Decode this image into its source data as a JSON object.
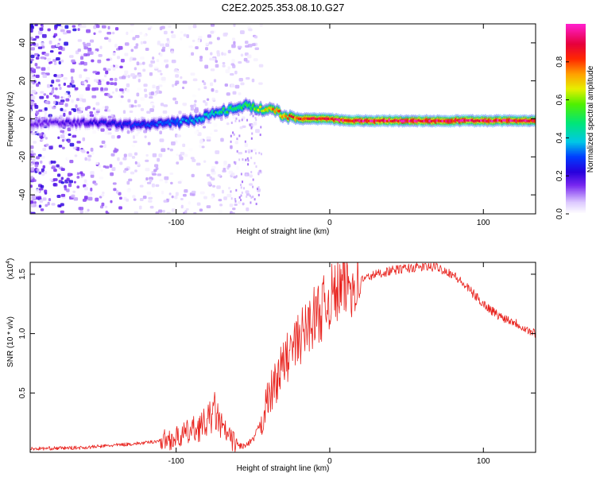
{
  "title": "C2E2.2025.353.08.10.G27",
  "chart_data": [
    {
      "type": "heatmap",
      "name": "spectrogram",
      "xlabel": "Height of straight line (km)",
      "ylabel": "Frequency (Hz)",
      "xlim": [
        -195,
        134
      ],
      "ylim": [
        -50,
        50
      ],
      "xticks": [
        -100,
        0,
        100
      ],
      "yticks": [
        -40,
        -20,
        0,
        20,
        40
      ],
      "ridge": {
        "x": [
          -195,
          -160,
          -140,
          -120,
          -100,
          -85,
          -75,
          -65,
          -55,
          -48,
          -42,
          -35,
          -28,
          -20,
          -10,
          0,
          10,
          20,
          40,
          60,
          80,
          100,
          120,
          134
        ],
        "freq": [
          -2,
          -2,
          -3,
          -3,
          -2,
          0,
          3,
          5,
          7,
          6,
          5,
          4,
          1,
          0,
          0,
          0,
          -1,
          -1,
          -1,
          -1,
          -1,
          -1,
          -1,
          -1
        ],
        "amplitude": [
          0.15,
          0.2,
          0.25,
          0.3,
          0.35,
          0.4,
          0.45,
          0.5,
          0.55,
          0.6,
          0.7,
          0.75,
          0.8,
          0.85,
          0.9,
          0.9,
          0.95,
          0.95,
          0.95,
          0.95,
          0.95,
          0.95,
          0.95,
          0.95
        ]
      }
    },
    {
      "type": "colorbar",
      "name": "colorbar",
      "label": "Normalized spectral amplitude",
      "range": [
        0,
        1
      ],
      "ticks": [
        "0.0",
        "0.2",
        "0.4",
        "0.6",
        "0.8"
      ]
    },
    {
      "type": "line",
      "name": "snr",
      "xlabel": "Height of straight line (km)",
      "ylabel": "SNR (10 * v/v)",
      "scale_label": "(x10",
      "scale_exp": "4",
      "scale_close": ")",
      "xlim": [
        -195,
        134
      ],
      "ylim": [
        0,
        1.6
      ],
      "xticks": [
        -100,
        0,
        100
      ],
      "yticks": [
        "0.5",
        "1.0",
        "1.5"
      ],
      "color": "#e8211c",
      "x": [
        -195,
        -160,
        -140,
        -120,
        -100,
        -90,
        -80,
        -75,
        -70,
        -65,
        -60,
        -55,
        -50,
        -45,
        -40,
        -35,
        -30,
        -25,
        -20,
        -15,
        -10,
        -5,
        0,
        5,
        10,
        20,
        30,
        40,
        50,
        60,
        70,
        80,
        90,
        100,
        110,
        120,
        130,
        134
      ],
      "y": [
        0.03,
        0.04,
        0.06,
        0.08,
        0.12,
        0.18,
        0.25,
        0.35,
        0.2,
        0.12,
        0.06,
        0.05,
        0.1,
        0.25,
        0.45,
        0.6,
        0.75,
        0.85,
        0.95,
        1.05,
        1.15,
        1.2,
        1.3,
        1.35,
        1.4,
        1.45,
        1.5,
        1.53,
        1.55,
        1.56,
        1.56,
        1.5,
        1.38,
        1.25,
        1.15,
        1.1,
        1.02,
        1.0
      ]
    }
  ]
}
